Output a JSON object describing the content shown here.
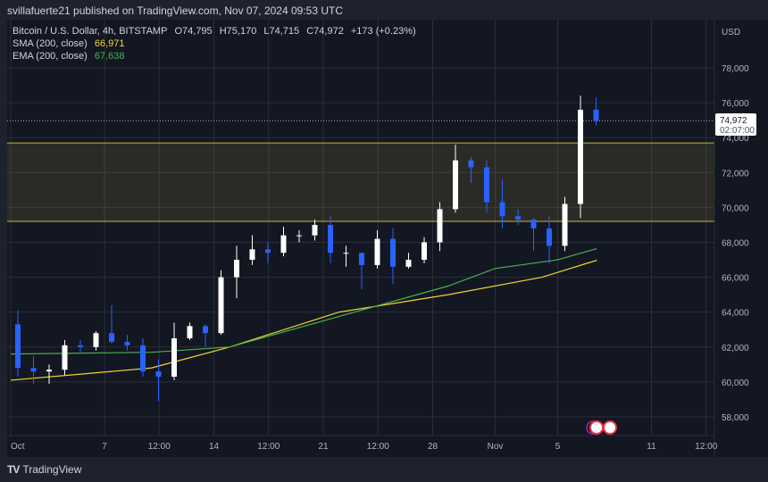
{
  "header": {
    "published": "svillafuerte21 published on TradingView.com, Nov 07, 2024 09:53 UTC"
  },
  "legend": {
    "symbol": "Bitcoin / U.S. Dollar, 4h, BITSTAMP",
    "open": "O74,795",
    "high": "H75,170",
    "low": "L74,715",
    "close": "C74,972",
    "change": "+173 (+0.23%)",
    "sma_label": "SMA (200, close)",
    "sma_value": "66,971",
    "ema_label": "EMA (200, close)",
    "ema_value": "67,638"
  },
  "axis": {
    "currency": "USD",
    "last_price": "74,972",
    "countdown": "02:07:00"
  },
  "footer": {
    "brand": "TradingView"
  },
  "colors": {
    "bg": "#131722",
    "up": "#ffffff",
    "down": "#2962ff",
    "sma": "#f2d630",
    "ema": "#4caf50",
    "zone": "#c9b53a"
  },
  "chart_data": {
    "type": "candlestick",
    "ylim": [
      57000,
      80000
    ],
    "y_ticks": [
      58000,
      60000,
      62000,
      64000,
      66000,
      68000,
      70000,
      72000,
      74000,
      76000,
      78000
    ],
    "x_ticks": [
      {
        "label": "Oct",
        "day": 0
      },
      {
        "label": "7",
        "day": 6
      },
      {
        "label": "12:00",
        "day": 9.5
      },
      {
        "label": "14",
        "day": 13
      },
      {
        "label": "12:00",
        "day": 16.5
      },
      {
        "label": "21",
        "day": 20
      },
      {
        "label": "12:00",
        "day": 23.5
      },
      {
        "label": "28",
        "day": 27
      },
      {
        "label": "Nov",
        "day": 31
      },
      {
        "label": "5",
        "day": 35
      },
      {
        "label": "11",
        "day": 41
      },
      {
        "label": "12:00",
        "day": 44.5
      }
    ],
    "ohlc": [
      [
        63300,
        64100,
        60300,
        60800
      ],
      [
        60800,
        61500,
        59900,
        60600
      ],
      [
        60600,
        61000,
        59900,
        60700
      ],
      [
        60700,
        62400,
        60400,
        62100
      ],
      [
        62100,
        62400,
        61700,
        62000
      ],
      [
        62000,
        62900,
        61800,
        62800
      ],
      [
        62800,
        64400,
        62200,
        62300
      ],
      [
        62300,
        62700,
        61800,
        62100
      ],
      [
        62100,
        62500,
        60300,
        60600
      ],
      [
        60600,
        61300,
        58900,
        60300
      ],
      [
        60300,
        63400,
        60100,
        62500
      ],
      [
        62500,
        63400,
        62400,
        63200
      ],
      [
        63200,
        63300,
        62000,
        62800
      ],
      [
        62800,
        66400,
        62700,
        66000
      ],
      [
        66000,
        67800,
        64800,
        67000
      ],
      [
        67000,
        68400,
        66700,
        67600
      ],
      [
        67600,
        68000,
        66800,
        67400
      ],
      [
        67400,
        68900,
        67200,
        68400
      ],
      [
        68400,
        68700,
        68000,
        68400
      ],
      [
        68400,
        69300,
        68100,
        69000
      ],
      [
        69000,
        69500,
        66800,
        67400
      ],
      [
        67400,
        67800,
        66600,
        67400
      ],
      [
        67400,
        67400,
        65300,
        66700
      ],
      [
        66700,
        68700,
        66500,
        68200
      ],
      [
        68200,
        68800,
        65600,
        66600
      ],
      [
        66600,
        67400,
        66500,
        67000
      ],
      [
        67000,
        68300,
        66800,
        68000
      ],
      [
        68000,
        70300,
        67500,
        69900
      ],
      [
        69900,
        73600,
        69700,
        72700
      ],
      [
        72700,
        72900,
        71400,
        72300
      ],
      [
        72300,
        72700,
        69700,
        70300
      ],
      [
        70300,
        71600,
        68800,
        69500
      ],
      [
        69500,
        69900,
        69000,
        69300
      ],
      [
        69300,
        69400,
        67500,
        68800
      ],
      [
        68800,
        69500,
        66800,
        67800
      ],
      [
        67800,
        70600,
        67500,
        70200
      ],
      [
        70200,
        76400,
        69400,
        75600
      ],
      [
        75600,
        76300,
        74700,
        74972
      ]
    ],
    "sma": [
      [
        0,
        60100
      ],
      [
        9,
        60800
      ],
      [
        14,
        62000
      ],
      [
        21,
        64000
      ],
      [
        28,
        65000
      ],
      [
        34,
        66000
      ],
      [
        37.5,
        66971
      ]
    ],
    "ema": [
      [
        0,
        61600
      ],
      [
        9,
        61700
      ],
      [
        14,
        62000
      ],
      [
        22,
        64000
      ],
      [
        28,
        65500
      ],
      [
        31,
        66500
      ],
      [
        35,
        67000
      ],
      [
        37.5,
        67638
      ]
    ],
    "zone": [
      69200,
      73700
    ],
    "last_price": 74972
  }
}
